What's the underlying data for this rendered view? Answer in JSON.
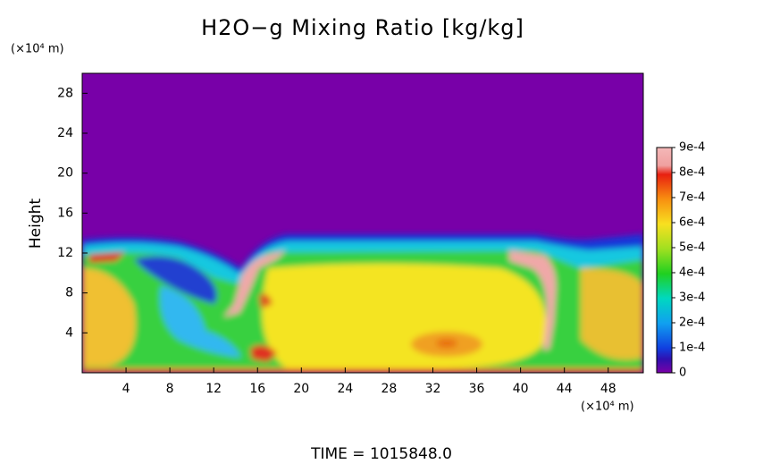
{
  "chart_data": {
    "type": "heatmap",
    "title": "H2O−g Mixing Ratio [kg/kg]",
    "x_unit": "(×10⁴ m)",
    "y_unit": "(×10⁴ m)",
    "ylabel": "Height",
    "footer": "TIME  =  1015848.0",
    "xlim": [
      0,
      51.2
    ],
    "ylim": [
      0,
      30
    ],
    "xticks": [
      4,
      8,
      12,
      16,
      20,
      24,
      28,
      32,
      36,
      40,
      44,
      48
    ],
    "yticks": [
      4,
      8,
      12,
      16,
      20,
      24,
      28
    ],
    "clim": [
      0,
      0.0009
    ],
    "cticks": [
      0,
      {
        "value": 0.0001,
        "label": "1e-4"
      },
      {
        "value": 0.0002,
        "label": "2e-4"
      },
      {
        "value": 0.0003,
        "label": "3e-4"
      },
      {
        "value": 0.0004,
        "label": "4e-4"
      },
      {
        "value": 0.0005,
        "label": "5e-4"
      },
      {
        "value": 0.0006,
        "label": "6e-4"
      },
      {
        "value": 0.0007,
        "label": "7e-4"
      },
      {
        "value": 0.0008,
        "label": "8e-4"
      },
      {
        "value": 0.0009,
        "label": "9e-4"
      }
    ]
  }
}
